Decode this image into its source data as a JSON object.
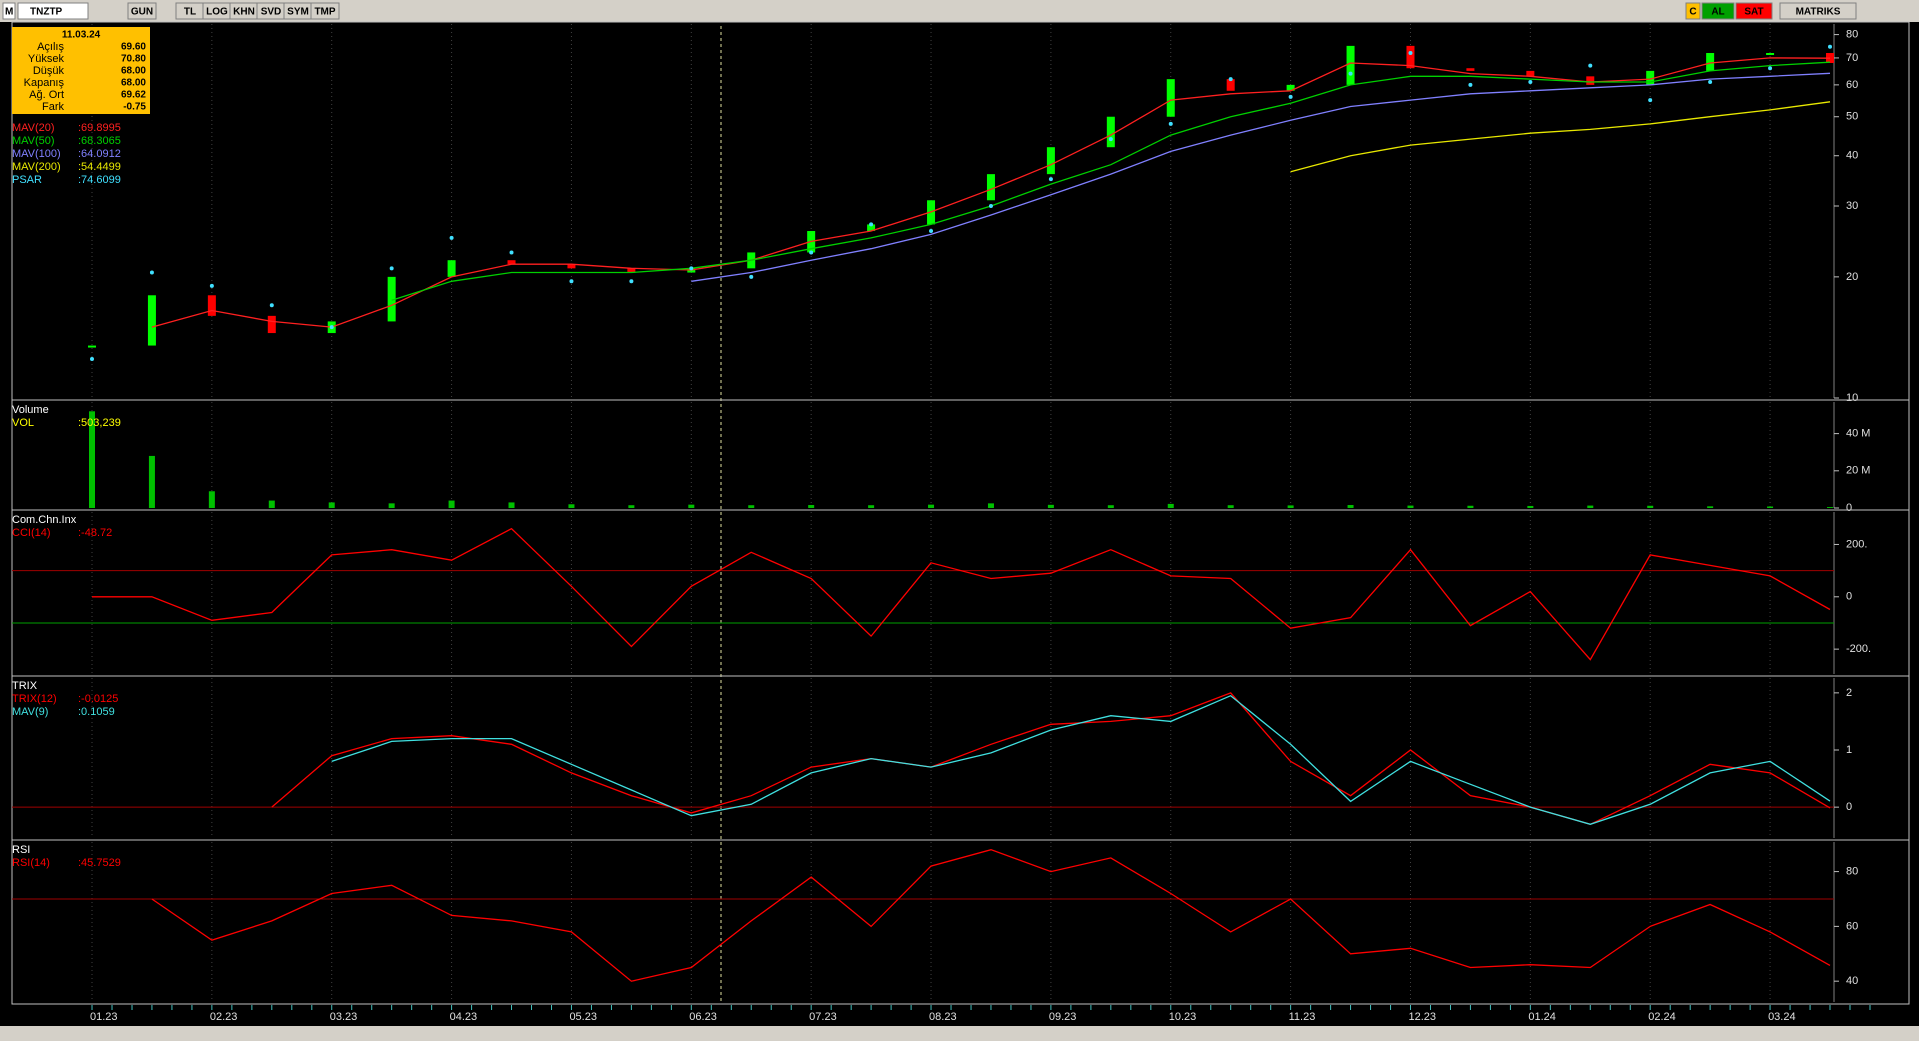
{
  "toolbar": {
    "logo": "M",
    "symbol": "TNZTP",
    "buttons": [
      "GUN",
      "TL",
      "LOG",
      "KHN",
      "SVD",
      "SYM",
      "TMP"
    ],
    "right": [
      "C",
      "AL",
      "SAT",
      "MATRIKS"
    ]
  },
  "info_box": {
    "date": "11.03.24",
    "rows": [
      [
        "Açılış",
        "69.60"
      ],
      [
        "Yüksek",
        "70.80"
      ],
      [
        "Düşük",
        "68.00"
      ],
      [
        "Kapanış",
        "68.00"
      ],
      [
        "Ağ. Ort",
        "69.62"
      ],
      [
        "Fark",
        "-0.75"
      ]
    ]
  },
  "chart_data": [
    {
      "type": "price",
      "log": true,
      "ylim": [
        10,
        85
      ],
      "yticks": [
        10,
        20,
        30,
        40,
        50,
        60,
        70,
        80
      ],
      "up_color": "#00ff00",
      "down_color": "#ff0000",
      "values": [
        13.5,
        18,
        16,
        14.5,
        15.5,
        20,
        22,
        21.5,
        21,
        20.5,
        21,
        23,
        26,
        27,
        31,
        36,
        42,
        50,
        62,
        58,
        60,
        75,
        66,
        65,
        63,
        60,
        65,
        72,
        72,
        68
      ],
      "series": [
        {
          "name": "MAV(20)",
          "legend_label": ":69.8995",
          "color": "#ff2020",
          "values": [
            null,
            15,
            16.5,
            15.5,
            15,
            17,
            20,
            21.5,
            21.5,
            21,
            20.8,
            22,
            24.5,
            26,
            29,
            33,
            38,
            45,
            55,
            57,
            58,
            68,
            67,
            64,
            63,
            61,
            62,
            68,
            70,
            69.8995
          ]
        },
        {
          "name": "MAV(50)",
          "legend_label": ":68.3065",
          "color": "#00d000",
          "values": [
            null,
            null,
            null,
            null,
            null,
            17.5,
            19.5,
            20.5,
            20.5,
            20.5,
            21,
            22,
            23.5,
            25,
            27,
            30,
            34,
            38,
            45,
            50,
            54,
            60,
            63,
            63,
            62,
            61,
            61,
            65,
            67,
            68.3065
          ]
        },
        {
          "name": "MAV(100)",
          "legend_label": ":64.0912",
          "color": "#8080ff",
          "values": [
            null,
            null,
            null,
            null,
            null,
            null,
            null,
            null,
            null,
            null,
            19.5,
            20.5,
            22,
            23.5,
            25.5,
            28.5,
            32,
            36,
            41,
            45,
            49,
            53,
            55,
            57,
            58,
            59,
            60,
            62,
            63,
            64.0912
          ]
        },
        {
          "name": "MAV(200)",
          "legend_label": ":54.4499",
          "color": "#e8e800",
          "values": [
            null,
            null,
            null,
            null,
            null,
            null,
            null,
            null,
            null,
            null,
            null,
            null,
            null,
            null,
            null,
            null,
            null,
            null,
            null,
            null,
            36.5,
            40,
            42.5,
            44,
            45.5,
            46.5,
            48,
            50,
            52,
            54.4499
          ]
        },
        {
          "name": "PSAR",
          "legend_label": ":74.6099",
          "color": "#40e0ff",
          "style": "dots",
          "values": [
            12.5,
            20.5,
            19,
            17,
            15,
            21,
            25,
            23,
            19.5,
            19.5,
            21,
            20,
            23,
            27,
            26,
            30,
            35,
            44,
            48,
            62,
            56,
            64,
            72,
            60,
            61,
            67,
            55,
            61,
            66,
            74.6099
          ]
        }
      ]
    },
    {
      "type": "bar",
      "title": "Volume",
      "ylim": [
        0,
        57000000
      ],
      "yticks": [
        {
          "value": 0,
          "label": "0"
        },
        {
          "value": 20000000,
          "label": "20 M"
        },
        {
          "value": 40000000,
          "label": "40 M"
        }
      ],
      "series": [
        {
          "name": "VOL",
          "legend_label": ":503,239",
          "color": "#00c000",
          "label_color": "#ffff00",
          "values": [
            52000000,
            28000000,
            9000000,
            4000000,
            3000000,
            2500000,
            4000000,
            3000000,
            2000000,
            1500000,
            1800000,
            1500000,
            1600000,
            1500000,
            1800000,
            2500000,
            1700000,
            1500000,
            2200000,
            1500000,
            1400000,
            1600000,
            1300000,
            1200000,
            1100000,
            1300000,
            1200000,
            900000,
            800000,
            503239
          ]
        }
      ]
    },
    {
      "type": "line",
      "title": "Com.Chn.Inx",
      "ylim": [
        -295,
        324
      ],
      "yticks": [
        {
          "value": 200,
          "label": "200."
        },
        0,
        {
          "value": -200,
          "label": "-200."
        }
      ],
      "hlines": [
        {
          "value": 100,
          "color": "#a00000"
        },
        {
          "value": -100,
          "color": "#00a000"
        }
      ],
      "series": [
        {
          "name": "CCI(14)",
          "legend_label": ":-48.72",
          "color": "#ff0000",
          "values": [
            0,
            0,
            -90,
            -60,
            160,
            180,
            140,
            260,
            40,
            -190,
            40,
            170,
            70,
            -150,
            130,
            70,
            90,
            180,
            80,
            70,
            -120,
            -80,
            180,
            -110,
            20,
            -240,
            160,
            120,
            80,
            -48.72
          ]
        }
      ]
    },
    {
      "type": "line",
      "title": "TRIX",
      "ylim": [
        -0.54,
        2.26
      ],
      "yticks": [
        0,
        1,
        2
      ],
      "hlines": [
        {
          "value": 0,
          "color": "#a00000"
        }
      ],
      "series": [
        {
          "name": "TRIX(12)",
          "legend_label": ":-0.0125",
          "color": "#ff0000",
          "values": [
            null,
            null,
            null,
            0,
            0.9,
            1.2,
            1.25,
            1.1,
            0.6,
            0.2,
            -0.1,
            0.2,
            0.7,
            0.85,
            0.7,
            1.1,
            1.45,
            1.5,
            1.6,
            2.0,
            0.8,
            0.2,
            1.0,
            0.2,
            0.0,
            -0.3,
            0.2,
            0.75,
            0.6,
            -0.0125
          ]
        },
        {
          "name": "MAV(9)",
          "legend_label": ":0.1059",
          "color": "#40e0e0",
          "values": [
            null,
            null,
            null,
            null,
            0.8,
            1.15,
            1.2,
            1.2,
            0.75,
            0.3,
            -0.15,
            0.05,
            0.6,
            0.85,
            0.7,
            0.95,
            1.35,
            1.6,
            1.5,
            1.95,
            1.1,
            0.1,
            0.8,
            0.4,
            0.0,
            -0.3,
            0.05,
            0.6,
            0.8,
            0.1059
          ]
        }
      ]
    },
    {
      "type": "line",
      "title": "RSI",
      "ylim": [
        32.4,
        90.8
      ],
      "yticks": [
        40,
        60,
        80
      ],
      "hlines": [
        {
          "value": 70,
          "color": "#a00000"
        }
      ],
      "categories": [
        "01.23",
        null,
        "02.23",
        null,
        "03.23",
        null,
        "04.23",
        null,
        "05.23",
        null,
        "06.23",
        null,
        "07.23",
        null,
        "08.23",
        null,
        "09.23",
        null,
        "10.23",
        null,
        "11.23",
        null,
        "12.23",
        null,
        "01.24",
        null,
        "02.24",
        null,
        "03.24",
        null
      ],
      "series": [
        {
          "name": "RSI(14)",
          "legend_label": ":45.7529",
          "color": "#ff0000",
          "values": [
            null,
            70,
            55,
            62,
            72,
            75,
            64,
            62,
            58,
            40,
            45,
            62,
            78,
            60,
            82,
            88,
            80,
            85,
            72,
            58,
            70,
            50,
            52,
            45,
            46,
            45,
            60,
            68,
            58,
            45.7529
          ]
        }
      ]
    }
  ]
}
